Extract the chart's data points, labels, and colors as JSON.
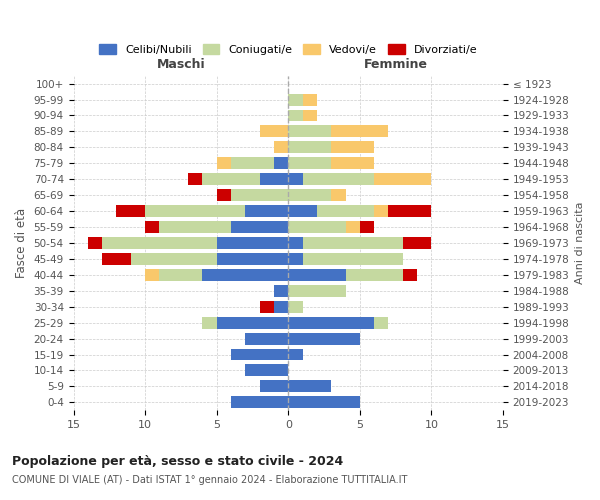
{
  "age_groups": [
    "0-4",
    "5-9",
    "10-14",
    "15-19",
    "20-24",
    "25-29",
    "30-34",
    "35-39",
    "40-44",
    "45-49",
    "50-54",
    "55-59",
    "60-64",
    "65-69",
    "70-74",
    "75-79",
    "80-84",
    "85-89",
    "90-94",
    "95-99",
    "100+"
  ],
  "birth_years": [
    "2019-2023",
    "2014-2018",
    "2009-2013",
    "2004-2008",
    "1999-2003",
    "1994-1998",
    "1989-1993",
    "1984-1988",
    "1979-1983",
    "1974-1978",
    "1969-1973",
    "1964-1968",
    "1959-1963",
    "1954-1958",
    "1949-1953",
    "1944-1948",
    "1939-1943",
    "1934-1938",
    "1929-1933",
    "1924-1928",
    "≤ 1923"
  ],
  "males": {
    "celibi": [
      4,
      2,
      3,
      4,
      3,
      5,
      1,
      1,
      6,
      5,
      5,
      4,
      3,
      0,
      2,
      1,
      0,
      0,
      0,
      0,
      0
    ],
    "coniugati": [
      0,
      0,
      0,
      0,
      0,
      1,
      0,
      0,
      3,
      6,
      8,
      5,
      7,
      4,
      4,
      3,
      0,
      0,
      0,
      0,
      0
    ],
    "vedovi": [
      0,
      0,
      0,
      0,
      0,
      0,
      0,
      0,
      1,
      0,
      0,
      0,
      0,
      0,
      0,
      1,
      1,
      2,
      0,
      0,
      0
    ],
    "divorziati": [
      0,
      0,
      0,
      0,
      0,
      0,
      1,
      0,
      0,
      2,
      1,
      1,
      2,
      1,
      1,
      0,
      0,
      0,
      0,
      0,
      0
    ]
  },
  "females": {
    "nubili": [
      5,
      3,
      0,
      1,
      5,
      6,
      0,
      0,
      4,
      1,
      1,
      0,
      2,
      0,
      1,
      0,
      0,
      0,
      0,
      0,
      0
    ],
    "coniugate": [
      0,
      0,
      0,
      0,
      0,
      1,
      1,
      4,
      4,
      7,
      7,
      4,
      4,
      3,
      5,
      3,
      3,
      3,
      1,
      1,
      0
    ],
    "vedove": [
      0,
      0,
      0,
      0,
      0,
      0,
      0,
      0,
      0,
      0,
      0,
      1,
      1,
      1,
      4,
      3,
      3,
      4,
      1,
      1,
      0
    ],
    "divorziate": [
      0,
      0,
      0,
      0,
      0,
      0,
      0,
      0,
      1,
      0,
      2,
      1,
      3,
      0,
      0,
      0,
      0,
      0,
      0,
      0,
      0
    ]
  },
  "color_celibi": "#4472c4",
  "color_coniugati": "#c5d9a0",
  "color_vedovi": "#f9c86b",
  "color_divorziati": "#cc0000",
  "xlim": 15,
  "title": "Popolazione per età, sesso e stato civile - 2024",
  "subtitle": "COMUNE DI VIALE (AT) - Dati ISTAT 1° gennaio 2024 - Elaborazione TUTTITALIA.IT",
  "ylabel_left": "Fasce di età",
  "ylabel_right": "Anni di nascita",
  "xlabel_left": "Maschi",
  "xlabel_right": "Femmine",
  "legend_labels": [
    "Celibi/Nubili",
    "Coniugati/e",
    "Vedovi/e",
    "Divorziati/e"
  ],
  "bg_color": "#ffffff",
  "grid_color": "#cccccc"
}
